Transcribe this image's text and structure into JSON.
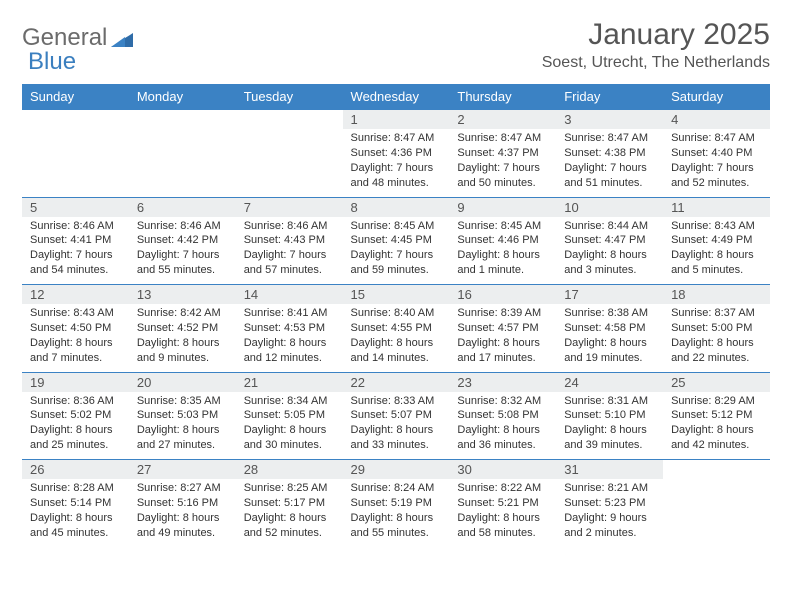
{
  "logo": {
    "text1": "General",
    "text2": "Blue"
  },
  "title": "January 2025",
  "location": "Soest, Utrecht, The Netherlands",
  "colors": {
    "header_bg": "#3b82c4",
    "header_text": "#ffffff",
    "daynum_bg": "#eceeef",
    "border": "#3b82c4",
    "logo_gray": "#6b6b6b",
    "logo_blue": "#3b7fbf"
  },
  "weekdays": [
    "Sunday",
    "Monday",
    "Tuesday",
    "Wednesday",
    "Thursday",
    "Friday",
    "Saturday"
  ],
  "weeks": [
    [
      null,
      null,
      null,
      {
        "n": "1",
        "sr": "Sunrise: 8:47 AM",
        "ss": "Sunset: 4:36 PM",
        "d1": "Daylight: 7 hours",
        "d2": "and 48 minutes."
      },
      {
        "n": "2",
        "sr": "Sunrise: 8:47 AM",
        "ss": "Sunset: 4:37 PM",
        "d1": "Daylight: 7 hours",
        "d2": "and 50 minutes."
      },
      {
        "n": "3",
        "sr": "Sunrise: 8:47 AM",
        "ss": "Sunset: 4:38 PM",
        "d1": "Daylight: 7 hours",
        "d2": "and 51 minutes."
      },
      {
        "n": "4",
        "sr": "Sunrise: 8:47 AM",
        "ss": "Sunset: 4:40 PM",
        "d1": "Daylight: 7 hours",
        "d2": "and 52 minutes."
      }
    ],
    [
      {
        "n": "5",
        "sr": "Sunrise: 8:46 AM",
        "ss": "Sunset: 4:41 PM",
        "d1": "Daylight: 7 hours",
        "d2": "and 54 minutes."
      },
      {
        "n": "6",
        "sr": "Sunrise: 8:46 AM",
        "ss": "Sunset: 4:42 PM",
        "d1": "Daylight: 7 hours",
        "d2": "and 55 minutes."
      },
      {
        "n": "7",
        "sr": "Sunrise: 8:46 AM",
        "ss": "Sunset: 4:43 PM",
        "d1": "Daylight: 7 hours",
        "d2": "and 57 minutes."
      },
      {
        "n": "8",
        "sr": "Sunrise: 8:45 AM",
        "ss": "Sunset: 4:45 PM",
        "d1": "Daylight: 7 hours",
        "d2": "and 59 minutes."
      },
      {
        "n": "9",
        "sr": "Sunrise: 8:45 AM",
        "ss": "Sunset: 4:46 PM",
        "d1": "Daylight: 8 hours",
        "d2": "and 1 minute."
      },
      {
        "n": "10",
        "sr": "Sunrise: 8:44 AM",
        "ss": "Sunset: 4:47 PM",
        "d1": "Daylight: 8 hours",
        "d2": "and 3 minutes."
      },
      {
        "n": "11",
        "sr": "Sunrise: 8:43 AM",
        "ss": "Sunset: 4:49 PM",
        "d1": "Daylight: 8 hours",
        "d2": "and 5 minutes."
      }
    ],
    [
      {
        "n": "12",
        "sr": "Sunrise: 8:43 AM",
        "ss": "Sunset: 4:50 PM",
        "d1": "Daylight: 8 hours",
        "d2": "and 7 minutes."
      },
      {
        "n": "13",
        "sr": "Sunrise: 8:42 AM",
        "ss": "Sunset: 4:52 PM",
        "d1": "Daylight: 8 hours",
        "d2": "and 9 minutes."
      },
      {
        "n": "14",
        "sr": "Sunrise: 8:41 AM",
        "ss": "Sunset: 4:53 PM",
        "d1": "Daylight: 8 hours",
        "d2": "and 12 minutes."
      },
      {
        "n": "15",
        "sr": "Sunrise: 8:40 AM",
        "ss": "Sunset: 4:55 PM",
        "d1": "Daylight: 8 hours",
        "d2": "and 14 minutes."
      },
      {
        "n": "16",
        "sr": "Sunrise: 8:39 AM",
        "ss": "Sunset: 4:57 PM",
        "d1": "Daylight: 8 hours",
        "d2": "and 17 minutes."
      },
      {
        "n": "17",
        "sr": "Sunrise: 8:38 AM",
        "ss": "Sunset: 4:58 PM",
        "d1": "Daylight: 8 hours",
        "d2": "and 19 minutes."
      },
      {
        "n": "18",
        "sr": "Sunrise: 8:37 AM",
        "ss": "Sunset: 5:00 PM",
        "d1": "Daylight: 8 hours",
        "d2": "and 22 minutes."
      }
    ],
    [
      {
        "n": "19",
        "sr": "Sunrise: 8:36 AM",
        "ss": "Sunset: 5:02 PM",
        "d1": "Daylight: 8 hours",
        "d2": "and 25 minutes."
      },
      {
        "n": "20",
        "sr": "Sunrise: 8:35 AM",
        "ss": "Sunset: 5:03 PM",
        "d1": "Daylight: 8 hours",
        "d2": "and 27 minutes."
      },
      {
        "n": "21",
        "sr": "Sunrise: 8:34 AM",
        "ss": "Sunset: 5:05 PM",
        "d1": "Daylight: 8 hours",
        "d2": "and 30 minutes."
      },
      {
        "n": "22",
        "sr": "Sunrise: 8:33 AM",
        "ss": "Sunset: 5:07 PM",
        "d1": "Daylight: 8 hours",
        "d2": "and 33 minutes."
      },
      {
        "n": "23",
        "sr": "Sunrise: 8:32 AM",
        "ss": "Sunset: 5:08 PM",
        "d1": "Daylight: 8 hours",
        "d2": "and 36 minutes."
      },
      {
        "n": "24",
        "sr": "Sunrise: 8:31 AM",
        "ss": "Sunset: 5:10 PM",
        "d1": "Daylight: 8 hours",
        "d2": "and 39 minutes."
      },
      {
        "n": "25",
        "sr": "Sunrise: 8:29 AM",
        "ss": "Sunset: 5:12 PM",
        "d1": "Daylight: 8 hours",
        "d2": "and 42 minutes."
      }
    ],
    [
      {
        "n": "26",
        "sr": "Sunrise: 8:28 AM",
        "ss": "Sunset: 5:14 PM",
        "d1": "Daylight: 8 hours",
        "d2": "and 45 minutes."
      },
      {
        "n": "27",
        "sr": "Sunrise: 8:27 AM",
        "ss": "Sunset: 5:16 PM",
        "d1": "Daylight: 8 hours",
        "d2": "and 49 minutes."
      },
      {
        "n": "28",
        "sr": "Sunrise: 8:25 AM",
        "ss": "Sunset: 5:17 PM",
        "d1": "Daylight: 8 hours",
        "d2": "and 52 minutes."
      },
      {
        "n": "29",
        "sr": "Sunrise: 8:24 AM",
        "ss": "Sunset: 5:19 PM",
        "d1": "Daylight: 8 hours",
        "d2": "and 55 minutes."
      },
      {
        "n": "30",
        "sr": "Sunrise: 8:22 AM",
        "ss": "Sunset: 5:21 PM",
        "d1": "Daylight: 8 hours",
        "d2": "and 58 minutes."
      },
      {
        "n": "31",
        "sr": "Sunrise: 8:21 AM",
        "ss": "Sunset: 5:23 PM",
        "d1": "Daylight: 9 hours",
        "d2": "and 2 minutes."
      },
      null
    ]
  ]
}
